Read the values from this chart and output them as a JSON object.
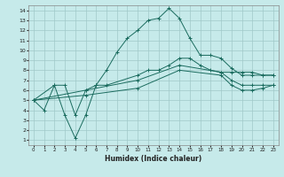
{
  "title": "",
  "xlabel": "Humidex (Indice chaleur)",
  "xlim": [
    -0.5,
    23.5
  ],
  "ylim": [
    0.5,
    14.5
  ],
  "xticks": [
    0,
    1,
    2,
    3,
    4,
    5,
    6,
    7,
    8,
    9,
    10,
    11,
    12,
    13,
    14,
    15,
    16,
    17,
    18,
    19,
    20,
    21,
    22,
    23
  ],
  "yticks": [
    1,
    2,
    3,
    4,
    5,
    6,
    7,
    8,
    9,
    10,
    11,
    12,
    13,
    14
  ],
  "bg_color": "#c6eaea",
  "grid_color": "#a0c8c8",
  "line_color": "#1a6b5e",
  "l1_x": [
    0,
    1,
    2,
    3,
    4,
    5,
    6,
    7,
    8,
    9,
    10,
    11,
    12,
    13,
    14,
    15,
    16,
    17,
    18,
    19,
    20,
    21,
    22,
    23
  ],
  "l1_y": [
    5.0,
    4.0,
    6.5,
    3.5,
    1.2,
    3.5,
    6.5,
    8.0,
    9.8,
    11.2,
    12.0,
    13.0,
    13.2,
    14.2,
    13.2,
    11.2,
    9.5,
    9.5,
    9.2,
    8.2,
    7.5,
    7.5,
    7.5,
    7.5
  ],
  "l2_x": [
    0,
    2,
    3,
    4,
    5,
    6,
    7,
    10,
    11,
    12,
    13,
    14,
    15,
    16,
    17,
    18,
    19,
    20,
    21,
    22,
    23
  ],
  "l2_y": [
    5.0,
    6.5,
    6.5,
    3.5,
    6.0,
    6.5,
    6.5,
    7.5,
    8.0,
    8.0,
    8.5,
    9.2,
    9.2,
    8.5,
    8.0,
    7.8,
    7.8,
    7.8,
    7.8,
    7.5,
    7.5
  ],
  "l3_x": [
    0,
    5,
    10,
    14,
    18,
    19,
    20,
    21,
    22,
    23
  ],
  "l3_y": [
    5.0,
    6.0,
    7.0,
    8.5,
    7.8,
    7.0,
    6.5,
    6.5,
    6.5,
    6.5
  ],
  "l4_x": [
    0,
    5,
    10,
    14,
    18,
    19,
    20,
    21,
    22,
    23
  ],
  "l4_y": [
    5.0,
    5.5,
    6.2,
    8.0,
    7.5,
    6.5,
    6.0,
    6.0,
    6.2,
    6.5
  ]
}
